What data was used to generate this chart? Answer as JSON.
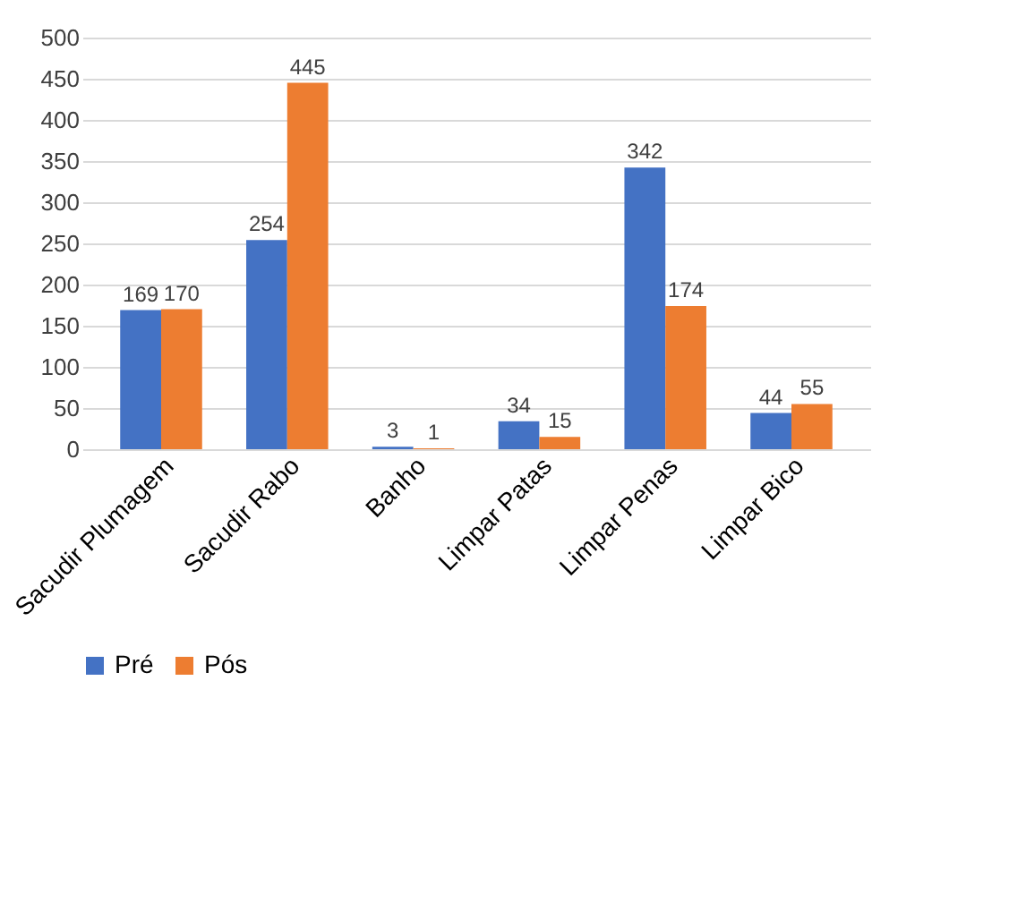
{
  "chart_data": {
    "type": "bar",
    "categories": [
      "Sacudir Plumagem",
      "Sacudir Rabo",
      "Banho",
      "Limpar Patas",
      "Limpar Penas",
      "Limpar Bico"
    ],
    "series": [
      {
        "name": "Pré",
        "color": "#4472c4",
        "values": [
          169,
          254,
          3,
          34,
          342,
          44
        ]
      },
      {
        "name": "Pós",
        "color": "#ed7d31",
        "values": [
          170,
          445,
          1,
          15,
          174,
          55
        ]
      }
    ],
    "ylim": [
      0,
      500
    ],
    "yticks": [
      0,
      50,
      100,
      150,
      200,
      250,
      300,
      350,
      400,
      450,
      500
    ],
    "grid": "y",
    "legend": "bottom",
    "data_labels": true
  }
}
